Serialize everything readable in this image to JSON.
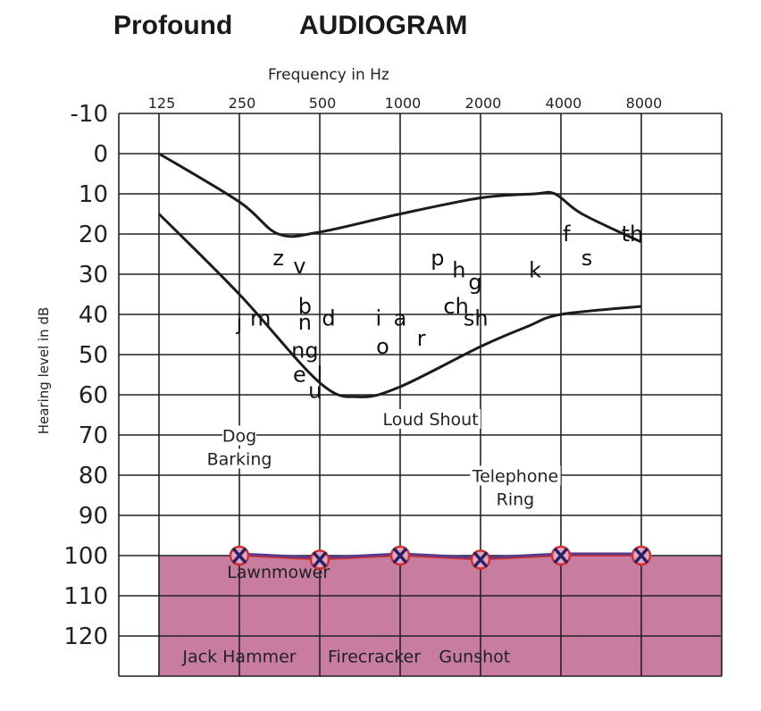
{
  "header": {
    "severity": "Profound",
    "title": "AUDIOGRAM"
  },
  "chart_data": {
    "type": "line",
    "title": "AUDIOGRAM",
    "xlabel": "Frequency in Hz",
    "ylabel": "Hearing level in dB",
    "x_tick_labels": [
      "125",
      "250",
      "500",
      "1000",
      "2000",
      "4000",
      "8000"
    ],
    "y_tick_labels": [
      "-10",
      "0",
      "10",
      "20",
      "30",
      "40",
      "50",
      "60",
      "70",
      "80",
      "90",
      "100",
      "110",
      "120"
    ],
    "ylim": [
      -10,
      130
    ],
    "y_inverted": true,
    "grid": true,
    "shaded_band": {
      "from_db": 100,
      "to_db": 130,
      "color": "#c77ca0"
    },
    "series": [
      {
        "name": "",
        "marker": "x-and-o",
        "x": [
          250,
          500,
          1000,
          2000,
          4000,
          8000
        ],
        "y": [
          100,
          101,
          100,
          101,
          100,
          100
        ],
        "line_color": "#5a3a8c",
        "o_color": "#d03030",
        "x_color": "#222266"
      }
    ],
    "speech_banana": {
      "upper": [
        [
          125,
          0
        ],
        [
          250,
          12
        ],
        [
          350,
          20
        ],
        [
          500,
          19.5
        ],
        [
          1000,
          15
        ],
        [
          2000,
          11
        ],
        [
          3200,
          10
        ],
        [
          3800,
          10
        ],
        [
          4800,
          15
        ],
        [
          8000,
          22
        ]
      ],
      "lower": [
        [
          125,
          15
        ],
        [
          250,
          35
        ],
        [
          500,
          57
        ],
        [
          700,
          60.5
        ],
        [
          1000,
          58
        ],
        [
          2000,
          48
        ],
        [
          3000,
          43
        ],
        [
          4000,
          40
        ],
        [
          8000,
          38
        ]
      ]
    },
    "phonemes": [
      {
        "t": "z",
        "f": 350,
        "db": 26
      },
      {
        "t": "v",
        "f": 420,
        "db": 28
      },
      {
        "t": "j",
        "f": 250,
        "db": 42
      },
      {
        "t": "m",
        "f": 300,
        "db": 41
      },
      {
        "t": "b",
        "f": 440,
        "db": 38
      },
      {
        "t": "n",
        "f": 440,
        "db": 42
      },
      {
        "t": "d",
        "f": 540,
        "db": 41
      },
      {
        "t": "ng",
        "f": 440,
        "db": 49
      },
      {
        "t": "e",
        "f": 420,
        "db": 55
      },
      {
        "t": "l",
        "f": 500,
        "db": 55
      },
      {
        "t": "u",
        "f": 480,
        "db": 59
      },
      {
        "t": "i",
        "f": 830,
        "db": 41
      },
      {
        "t": "a",
        "f": 1000,
        "db": 41
      },
      {
        "t": "o",
        "f": 860,
        "db": 48
      },
      {
        "t": "r",
        "f": 1200,
        "db": 46
      },
      {
        "t": "p",
        "f": 1380,
        "db": 26
      },
      {
        "t": "h",
        "f": 1660,
        "db": 29
      },
      {
        "t": "g",
        "f": 1910,
        "db": 32
      },
      {
        "t": "ch",
        "f": 1620,
        "db": 38
      },
      {
        "t": "sh",
        "f": 1920,
        "db": 41
      },
      {
        "t": "k",
        "f": 3200,
        "db": 29
      },
      {
        "t": "f",
        "f": 4200,
        "db": 20
      },
      {
        "t": "s",
        "f": 5000,
        "db": 26
      },
      {
        "t": "th",
        "f": 7400,
        "db": 20
      }
    ],
    "sounds": [
      {
        "lines": [
          "Dog",
          "Barking"
        ],
        "f": 250,
        "db": 73
      },
      {
        "lines": [
          "Loud Shout"
        ],
        "f": 1300,
        "db": 66
      },
      {
        "lines": [
          "Telephone",
          "Ring"
        ],
        "f": 2700,
        "db": 83
      },
      {
        "lines": [
          "Lawnmower"
        ],
        "f": 350,
        "db": 104
      },
      {
        "lines": [
          "Jack Hammer"
        ],
        "f": 250,
        "db": 125
      },
      {
        "lines": [
          "Firecracker"
        ],
        "f": 800,
        "db": 125
      },
      {
        "lines": [
          "Gunshot"
        ],
        "f": 1900,
        "db": 125
      }
    ]
  }
}
